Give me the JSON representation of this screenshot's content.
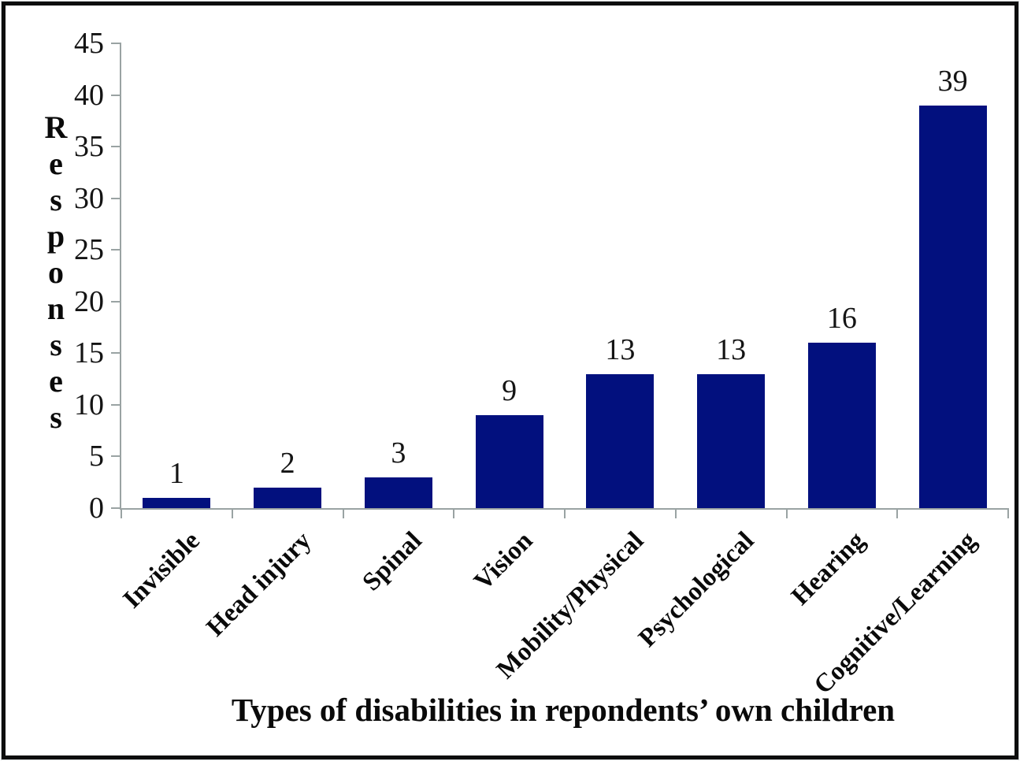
{
  "chart_data": {
    "type": "bar",
    "categories": [
      "Invisible",
      "Head injury",
      "Spinal",
      "Vision",
      "Mobility/Physical",
      "Psychological",
      "Hearing",
      "Cognitive/Learning"
    ],
    "values": [
      1,
      2,
      3,
      9,
      13,
      13,
      16,
      39
    ],
    "title": "",
    "xlabel": "Types of disabilities in repondents’ own children",
    "ylabel": "Responses",
    "ylim": [
      0,
      45
    ],
    "yticks": [
      0,
      5,
      10,
      15,
      20,
      25,
      30,
      35,
      40,
      45
    ],
    "grid": false,
    "legend": "none",
    "data_labels": true,
    "x_tick_rotation": 45,
    "bar_color": "#02107E",
    "axis_color": "#9aa3a3",
    "text_color": "#141414",
    "frame_color": "#0d0d0d",
    "background_color": "#ffffff"
  }
}
